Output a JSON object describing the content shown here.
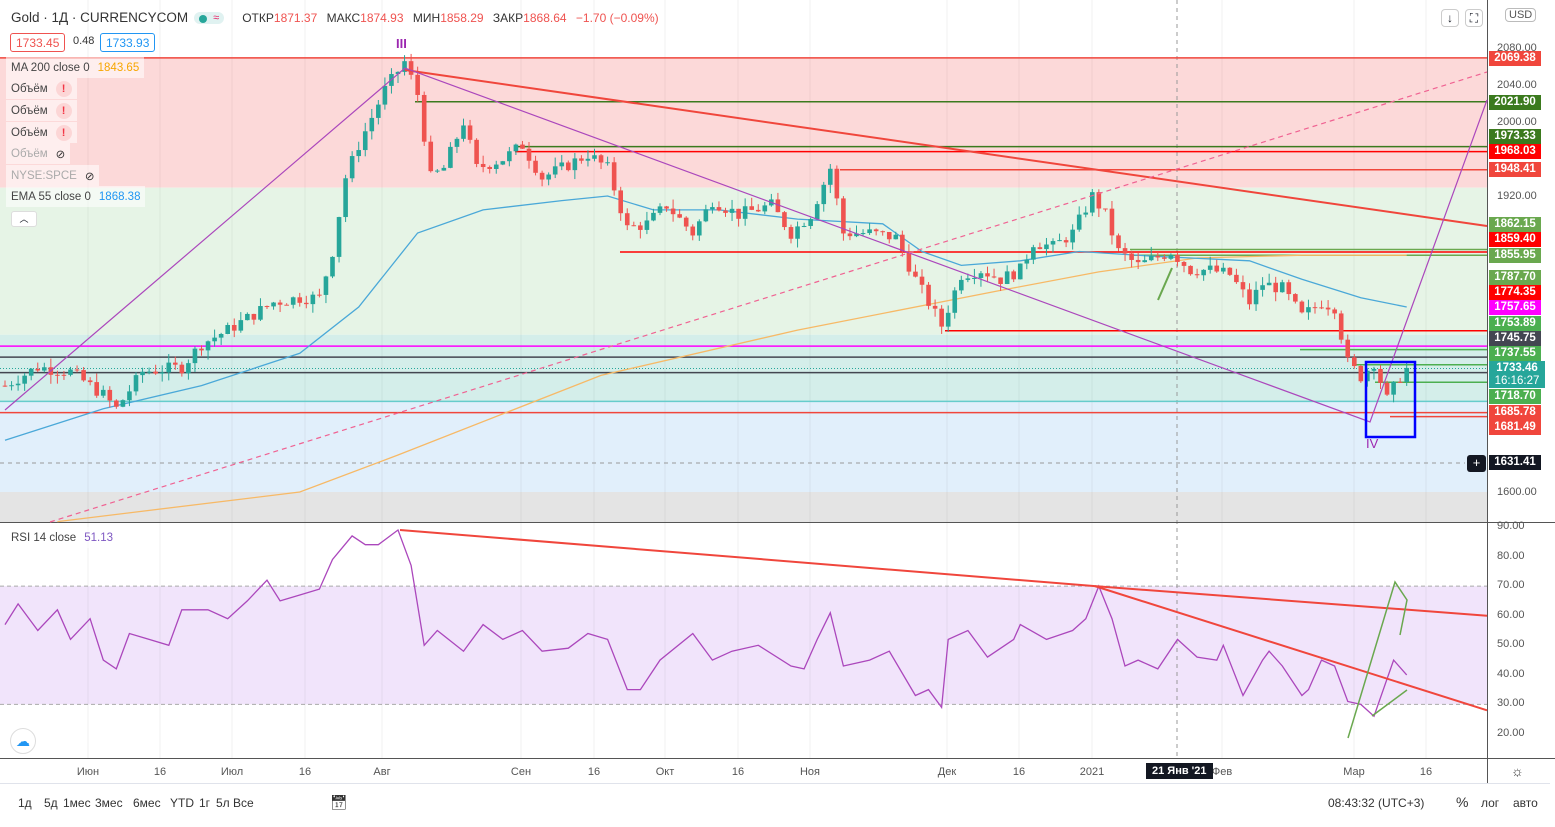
{
  "header": {
    "title": "Gold · 1Д · CURRENCYCOM",
    "open_label": "ОТКР",
    "open": "1871.37",
    "high_label": "МАКС",
    "high": "1874.93",
    "low_label": "МИН",
    "low": "1858.29",
    "close_label": "ЗАКР",
    "close": "1868.64",
    "change": "−1.70 (−0.09%)",
    "sell": "1733.45",
    "spread": "0.48",
    "buy": "1733.93"
  },
  "indicators": [
    {
      "name": "MA 200 close 0",
      "value": "1843.65"
    },
    {
      "name": "Объём"
    },
    {
      "name": "Объём"
    },
    {
      "name": "Объём"
    },
    {
      "name": "Объём"
    },
    {
      "name": "NYSE:SPCE"
    },
    {
      "name": "EMA 55 close 0",
      "value": "1868.38"
    }
  ],
  "rsi_label": "RSI 14 close",
  "rsi_value": "51.13",
  "wave_labels": {
    "iii": "III",
    "iv": "IV"
  },
  "currency": "USD",
  "colors": {
    "up": "#26a69a",
    "down": "#ef5350",
    "ema": "#4aa8d8",
    "ma": "#f7b966",
    "accent": "#2962ff"
  },
  "price_badges": [
    {
      "v": "2069.38",
      "c": "#f0463c"
    },
    {
      "v": "2021.90",
      "c": "#3b7a1e"
    },
    {
      "v": "1973.33",
      "c": "#3b7a1e"
    },
    {
      "v": "1968.03",
      "c": "#ff0000"
    },
    {
      "v": "1948.41",
      "c": "#f0463c"
    },
    {
      "v": "1862.15",
      "c": "#6aa84f"
    },
    {
      "v": "1859.40",
      "c": "#ff0000"
    },
    {
      "v": "1855.95",
      "c": "#6aa84f"
    },
    {
      "v": "1787.70",
      "c": "#6aa84f"
    },
    {
      "v": "1774.35",
      "c": "#ff0000"
    },
    {
      "v": "1757.65",
      "c": "#ff00ff"
    },
    {
      "v": "1753.89",
      "c": "#4caf50"
    },
    {
      "v": "1745.75",
      "c": "#434651"
    },
    {
      "v": "1737.55",
      "c": "#4caf50"
    },
    {
      "v": "1733.46",
      "c": "#26a69a",
      "sub": "16:16:27"
    },
    {
      "v": "1718.70",
      "c": "#4caf50"
    },
    {
      "v": "1685.78",
      "c": "#f0463c"
    },
    {
      "v": "1681.49",
      "c": "#f0463c"
    },
    {
      "v": "1631.41",
      "c": "#131722"
    }
  ],
  "price_ticks": [
    "2080.00",
    "2040.00",
    "2000.00",
    "1920.00",
    "1600.00"
  ],
  "rsi_ticks": [
    "90.00",
    "80.00",
    "70.00",
    "60.00",
    "50.00",
    "40.00",
    "30.00",
    "20.00"
  ],
  "time_labels": [
    "Июн",
    "16",
    "Июл",
    "16",
    "Авг",
    "Сен",
    "16",
    "Окт",
    "16",
    "Ноя",
    "Дек",
    "16",
    "2021",
    "Фев",
    "Мар",
    "16"
  ],
  "crosshair_date": "21 Янв '21",
  "bottom": {
    "ranges": [
      "1д",
      "5д",
      "1мес",
      "3мес",
      "6мес",
      "YTD",
      "1г",
      "5л",
      "Все"
    ],
    "time": "08:43:32 (UTC+3)",
    "percent": "%",
    "log": "лог",
    "auto": "авто"
  },
  "chart_data": {
    "type": "candlestick",
    "title": "Gold · 1Д · CURRENCYCOM",
    "ylim": [
      1560,
      2110
    ],
    "rsi_ylim": [
      15,
      92
    ],
    "price_path": [
      [
        0,
        1715
      ],
      [
        5,
        1735
      ],
      [
        10,
        1730
      ],
      [
        15,
        1705
      ],
      [
        17,
        1690
      ],
      [
        21,
        1730
      ],
      [
        27,
        1735
      ],
      [
        30,
        1760
      ],
      [
        34,
        1775
      ],
      [
        41,
        1805
      ],
      [
        45,
        1810
      ],
      [
        48,
        1810
      ],
      [
        50,
        1860
      ],
      [
        52,
        1940
      ],
      [
        54,
        1975
      ],
      [
        58,
        2035
      ],
      [
        61,
        2065
      ],
      [
        63,
        2030
      ],
      [
        65,
        1940
      ],
      [
        67,
        1950
      ],
      [
        70,
        2000
      ],
      [
        72,
        1950
      ],
      [
        76,
        1960
      ],
      [
        79,
        1975
      ],
      [
        82,
        1940
      ],
      [
        85,
        1950
      ],
      [
        89,
        1965
      ],
      [
        92,
        1950
      ],
      [
        95,
        1885
      ],
      [
        98,
        1890
      ],
      [
        101,
        1910
      ],
      [
        105,
        1880
      ],
      [
        108,
        1915
      ],
      [
        112,
        1900
      ],
      [
        117,
        1910
      ],
      [
        120,
        1880
      ],
      [
        123,
        1900
      ],
      [
        126,
        1950
      ],
      [
        128,
        1880
      ],
      [
        132,
        1880
      ],
      [
        136,
        1875
      ],
      [
        139,
        1830
      ],
      [
        143,
        1780
      ],
      [
        146,
        1835
      ],
      [
        149,
        1840
      ],
      [
        152,
        1830
      ],
      [
        155,
        1840
      ],
      [
        157,
        1870
      ],
      [
        160,
        1865
      ],
      [
        163,
        1880
      ],
      [
        166,
        1920
      ],
      [
        168,
        1900
      ],
      [
        170,
        1860
      ],
      [
        173,
        1845
      ],
      [
        178,
        1860
      ],
      [
        181,
        1840
      ],
      [
        184,
        1840
      ],
      [
        187,
        1835
      ],
      [
        190,
        1805
      ],
      [
        192,
        1825
      ],
      [
        195,
        1820
      ],
      [
        198,
        1790
      ],
      [
        201,
        1805
      ],
      [
        203,
        1800
      ],
      [
        205,
        1740
      ],
      [
        207,
        1725
      ],
      [
        209,
        1740
      ],
      [
        211,
        1700
      ],
      [
        213,
        1725
      ],
      [
        214,
        1733
      ]
    ],
    "ema55": [
      [
        0,
        1656
      ],
      [
        15,
        1690
      ],
      [
        30,
        1715
      ],
      [
        45,
        1750
      ],
      [
        54,
        1800
      ],
      [
        63,
        1880
      ],
      [
        73,
        1905
      ],
      [
        85,
        1915
      ],
      [
        92,
        1920
      ],
      [
        99,
        1905
      ],
      [
        109,
        1905
      ],
      [
        121,
        1895
      ],
      [
        134,
        1890
      ],
      [
        140,
        1860
      ],
      [
        146,
        1845
      ],
      [
        155,
        1850
      ],
      [
        164,
        1860
      ],
      [
        175,
        1855
      ],
      [
        190,
        1850
      ],
      [
        198,
        1830
      ],
      [
        207,
        1810
      ],
      [
        214,
        1800
      ]
    ],
    "ma200": [
      [
        8,
        1568
      ],
      [
        45,
        1600
      ],
      [
        60,
        1640
      ],
      [
        91,
        1726
      ],
      [
        121,
        1775
      ],
      [
        152,
        1818
      ],
      [
        167,
        1838
      ],
      [
        182,
        1853
      ],
      [
        198,
        1856
      ],
      [
        214,
        1856
      ]
    ],
    "rsi": [
      [
        0,
        57
      ],
      [
        2,
        64
      ],
      [
        5,
        55
      ],
      [
        8,
        62
      ],
      [
        10,
        52
      ],
      [
        13,
        59
      ],
      [
        15,
        45
      ],
      [
        17,
        42
      ],
      [
        19,
        54
      ],
      [
        22,
        52
      ],
      [
        25,
        50
      ],
      [
        27,
        62
      ],
      [
        31,
        62
      ],
      [
        34,
        59
      ],
      [
        37,
        65
      ],
      [
        40,
        72
      ],
      [
        42,
        65
      ],
      [
        45,
        67
      ],
      [
        48,
        69
      ],
      [
        50,
        79
      ],
      [
        53,
        87
      ],
      [
        55,
        84
      ],
      [
        57,
        84
      ],
      [
        60,
        89
      ],
      [
        62,
        77
      ],
      [
        64,
        50
      ],
      [
        66,
        55
      ],
      [
        70,
        48
      ],
      [
        73,
        57
      ],
      [
        76,
        52
      ],
      [
        79,
        55
      ],
      [
        82,
        48
      ],
      [
        86,
        49
      ],
      [
        89,
        54
      ],
      [
        92,
        52
      ],
      [
        95,
        35
      ],
      [
        97,
        35
      ],
      [
        100,
        45
      ],
      [
        105,
        54
      ],
      [
        108,
        45
      ],
      [
        111,
        48
      ],
      [
        115,
        50
      ],
      [
        120,
        43
      ],
      [
        122,
        42
      ],
      [
        124,
        52
      ],
      [
        126,
        61
      ],
      [
        128,
        43
      ],
      [
        132,
        45
      ],
      [
        135,
        48
      ],
      [
        139,
        33
      ],
      [
        141,
        35
      ],
      [
        143,
        29
      ],
      [
        144,
        52
      ],
      [
        147,
        55
      ],
      [
        150,
        46
      ],
      [
        154,
        52
      ],
      [
        155,
        57
      ],
      [
        159,
        52
      ],
      [
        163,
        55
      ],
      [
        165,
        59
      ],
      [
        167,
        70
      ],
      [
        169,
        59
      ],
      [
        171,
        43
      ],
      [
        173,
        45
      ],
      [
        176,
        42
      ],
      [
        179,
        52
      ],
      [
        182,
        46
      ],
      [
        185,
        45
      ],
      [
        186,
        50
      ],
      [
        189,
        33
      ],
      [
        192,
        45
      ],
      [
        193,
        48
      ],
      [
        195,
        43
      ],
      [
        198,
        33
      ],
      [
        199,
        35
      ],
      [
        201,
        45
      ],
      [
        203,
        43
      ],
      [
        205,
        31
      ],
      [
        207,
        30
      ],
      [
        209,
        26
      ],
      [
        212,
        45
      ],
      [
        214,
        40
      ]
    ],
    "rsi_bands": [
      30,
      70
    ]
  }
}
